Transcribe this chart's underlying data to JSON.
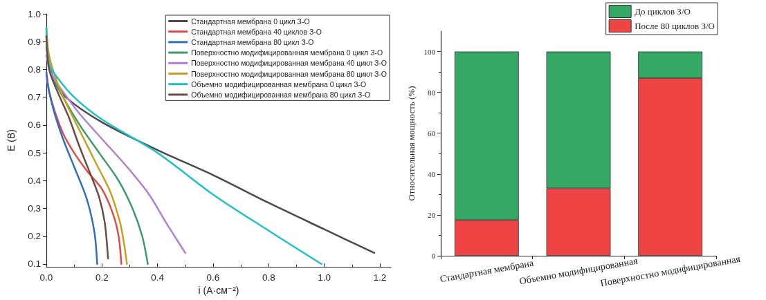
{
  "chart_data": [
    {
      "type": "line",
      "xlabel": "i (А·см⁻²)",
      "ylabel": "E (В)",
      "xlim": [
        0,
        1.24
      ],
      "ylim": [
        0.09,
        1.0
      ],
      "xticks": [
        {
          "value": 0,
          "label": "0.0"
        },
        0.2,
        0.4,
        0.6,
        0.8,
        {
          "value": 1,
          "label": "1.0"
        },
        1.2
      ],
      "yticks": [
        0.1,
        0.2,
        0.3,
        0.4,
        0.5,
        0.6,
        0.7,
        0.8,
        0.9,
        {
          "value": 1,
          "label": "1.0"
        }
      ],
      "grid": false,
      "legend": "top right",
      "marker": "none",
      "line_style": "solid",
      "series": [
        {
          "name": "Стандартная мембрана 0 цикл З-О",
          "color": "#4a4a4a",
          "x": [
            0,
            0.01,
            0.03,
            0.07,
            0.2,
            0.4,
            0.6,
            0.8,
            1.0,
            1.18
          ],
          "values": [
            0.92,
            0.82,
            0.76,
            0.7,
            0.61,
            0.51,
            0.42,
            0.32,
            0.225,
            0.14
          ]
        },
        {
          "name": "Стандартная мембрана 40 циклов З-О",
          "color": "#e04a4a",
          "x": [
            0,
            0.01,
            0.03,
            0.06,
            0.1,
            0.15,
            0.2,
            0.24,
            0.26,
            0.27
          ],
          "values": [
            0.78,
            0.72,
            0.65,
            0.57,
            0.5,
            0.43,
            0.37,
            0.28,
            0.2,
            0.1
          ]
        },
        {
          "name": "Стандартная мембрана 80 цикл З-О",
          "color": "#2f6fc0",
          "x": [
            0,
            0.01,
            0.03,
            0.06,
            0.1,
            0.14,
            0.16,
            0.175,
            0.183
          ],
          "values": [
            0.79,
            0.72,
            0.64,
            0.55,
            0.45,
            0.35,
            0.28,
            0.2,
            0.1
          ]
        },
        {
          "name": "Поверхностно модифицированная мембрана 0 цикл З-О",
          "color": "#3a9a6a",
          "x": [
            0,
            0.02,
            0.06,
            0.12,
            0.19,
            0.26,
            0.31,
            0.345,
            0.365
          ],
          "values": [
            0.88,
            0.78,
            0.7,
            0.6,
            0.5,
            0.4,
            0.3,
            0.2,
            0.1
          ]
        },
        {
          "name": "Поверхностно модифицированная мембрана 40 цикл З-О",
          "color": "#b07fd0",
          "x": [
            0,
            0.02,
            0.06,
            0.12,
            0.2,
            0.29,
            0.37,
            0.43,
            0.5
          ],
          "values": [
            0.85,
            0.78,
            0.72,
            0.64,
            0.55,
            0.45,
            0.35,
            0.25,
            0.14
          ]
        },
        {
          "name": "Поверхностно модифицированная мембрана 80 цикл З-О",
          "color": "#c8a020",
          "x": [
            0,
            0.01,
            0.04,
            0.08,
            0.13,
            0.18,
            0.23,
            0.265,
            0.28,
            0.29
          ],
          "values": [
            0.95,
            0.85,
            0.75,
            0.66,
            0.56,
            0.46,
            0.36,
            0.25,
            0.17,
            0.1
          ]
        },
        {
          "name": "Объемно модифицированная мембрана 0 цикл З-О",
          "color": "#20c0c8",
          "x": [
            0,
            0.01,
            0.04,
            0.1,
            0.2,
            0.4,
            0.6,
            0.8,
            0.99
          ],
          "values": [
            0.95,
            0.82,
            0.77,
            0.7,
            0.62,
            0.5,
            0.35,
            0.22,
            0.1
          ]
        },
        {
          "name": "Объемно модифицированная мембрана 80 цикл З-О",
          "color": "#6e4a44",
          "x": [
            0,
            0.01,
            0.04,
            0.08,
            0.12,
            0.16,
            0.19,
            0.21,
            0.222
          ],
          "values": [
            0.92,
            0.8,
            0.72,
            0.63,
            0.52,
            0.42,
            0.34,
            0.25,
            0.12
          ]
        }
      ]
    },
    {
      "type": "bar",
      "stacked": true,
      "ylabel": "Относительная мощность (%)",
      "ylim": [
        0,
        110
      ],
      "yticks": [
        0,
        20,
        40,
        60,
        80,
        100
      ],
      "categories": [
        "Стандартная мембрана",
        "Объемно модифицированная",
        "Поверхностно модифицированная"
      ],
      "grid": false,
      "legend": "top right",
      "series": [
        {
          "name": "После 80 циклов З/О",
          "color": "#ee4444",
          "values": [
            17.5,
            33,
            87
          ]
        },
        {
          "name": "До циклов З/О",
          "color": "#36a865",
          "values": [
            82.5,
            67,
            13
          ]
        }
      ]
    }
  ]
}
